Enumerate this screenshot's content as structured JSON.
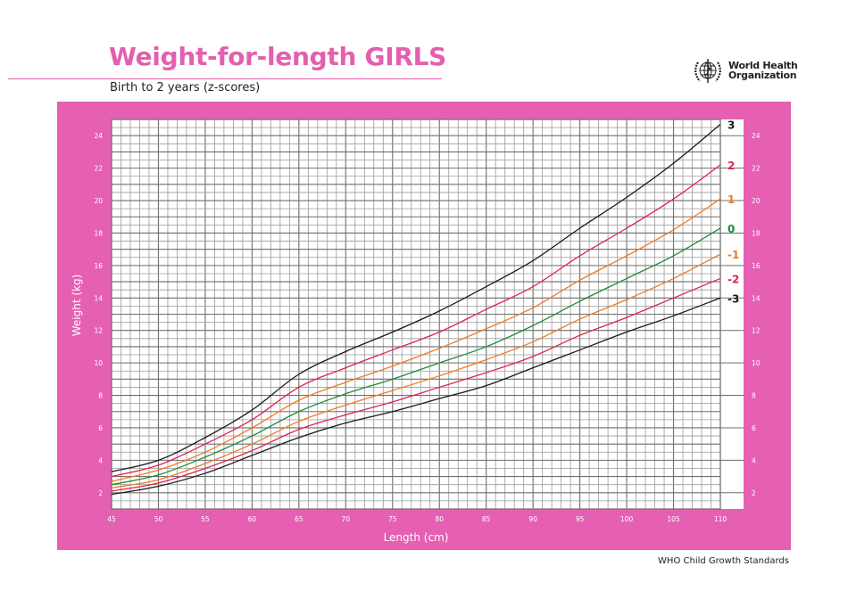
{
  "header": {
    "title": "Weight-for-length GIRLS",
    "subtitle": "Birth to 2 years (z-scores)",
    "org_line1": "World Health",
    "org_line2": "Organization",
    "logo_icon": "who-emblem-icon"
  },
  "footer": {
    "text": "WHO Child Growth Standards"
  },
  "colors": {
    "brand_pink": "#e560b2",
    "title_pink": "#e260ae",
    "z3": "#1a1a1a",
    "z2": "#e0234e",
    "z1": "#f07a22",
    "z0": "#1f8a3e"
  },
  "chart_data": {
    "type": "line",
    "title": "Weight-for-length GIRLS",
    "subtitle": "Birth to 2 years (z-scores)",
    "xlabel": "Length (cm)",
    "ylabel": "Weight (kg)",
    "xlim": [
      45,
      110
    ],
    "ylim": [
      1,
      25
    ],
    "x_ticks": [
      45,
      50,
      55,
      60,
      65,
      70,
      75,
      80,
      85,
      90,
      95,
      100,
      105,
      110
    ],
    "y_ticks": [
      2,
      4,
      6,
      8,
      10,
      12,
      14,
      16,
      18,
      20,
      22,
      24
    ],
    "grid": true,
    "grid_minor_x": 1,
    "grid_minor_y": 0.5,
    "legend_position": "right (inline curve labels)",
    "x": [
      45,
      50,
      55,
      60,
      65,
      70,
      75,
      80,
      85,
      90,
      95,
      100,
      105,
      110
    ],
    "series": [
      {
        "name": "3",
        "color": "#1a1a1a",
        "values": [
          3.3,
          4.0,
          5.4,
          7.1,
          9.3,
          10.7,
          11.9,
          13.2,
          14.7,
          16.3,
          18.3,
          20.2,
          22.3,
          24.7
        ]
      },
      {
        "name": "2",
        "color": "#e0234e",
        "values": [
          3.0,
          3.7,
          5.0,
          6.5,
          8.5,
          9.7,
          10.8,
          11.9,
          13.3,
          14.7,
          16.6,
          18.3,
          20.1,
          22.2
        ]
      },
      {
        "name": "1",
        "color": "#f07a22",
        "values": [
          2.7,
          3.4,
          4.5,
          6.0,
          7.7,
          8.8,
          9.8,
          10.9,
          12.1,
          13.4,
          15.1,
          16.6,
          18.2,
          20.1
        ]
      },
      {
        "name": "0",
        "color": "#1f8a3e",
        "values": [
          2.5,
          3.1,
          4.2,
          5.5,
          7.0,
          8.1,
          9.0,
          10.0,
          11.0,
          12.3,
          13.8,
          15.2,
          16.6,
          18.3
        ]
      },
      {
        "name": "-1",
        "color": "#f07a22",
        "values": [
          2.3,
          2.8,
          3.8,
          5.0,
          6.4,
          7.4,
          8.3,
          9.2,
          10.2,
          11.3,
          12.7,
          13.9,
          15.2,
          16.7
        ]
      },
      {
        "name": "-2",
        "color": "#e0234e",
        "values": [
          2.1,
          2.6,
          3.5,
          4.6,
          5.9,
          6.8,
          7.6,
          8.5,
          9.4,
          10.4,
          11.7,
          12.8,
          14.0,
          15.2
        ]
      },
      {
        "name": "-3",
        "color": "#1a1a1a",
        "values": [
          1.9,
          2.4,
          3.2,
          4.3,
          5.4,
          6.3,
          7.0,
          7.8,
          8.6,
          9.7,
          10.8,
          11.9,
          12.9,
          14.0
        ]
      }
    ]
  }
}
